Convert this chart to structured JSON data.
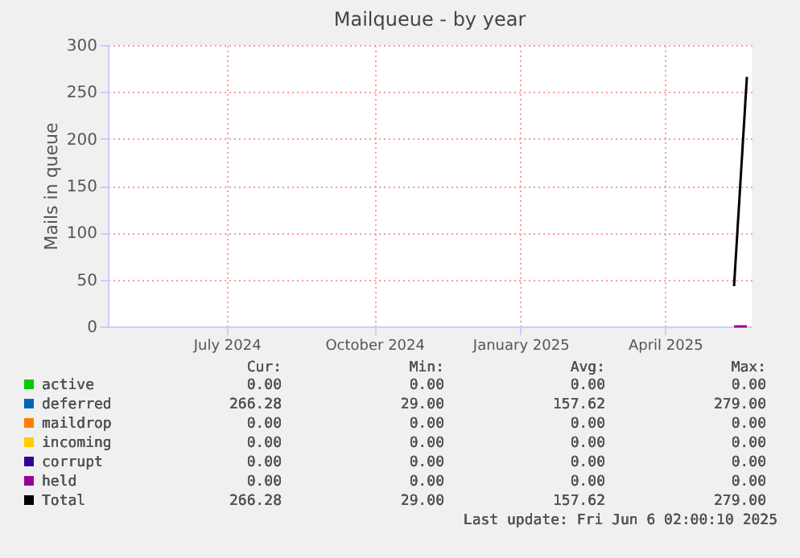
{
  "chart_data": {
    "type": "line",
    "title": "Mailqueue - by year",
    "ylabel": "Mails in queue",
    "xlim": [
      "2024-05-03",
      "2025-06-08"
    ],
    "xticks": [
      {
        "value": "2024-07-16",
        "label": "July 2024"
      },
      {
        "value": "2024-10-16",
        "label": "October 2024"
      },
      {
        "value": "2025-01-15",
        "label": "January 2025"
      },
      {
        "value": "2025-04-15",
        "label": "April 2025"
      }
    ],
    "ylim": [
      0,
      300
    ],
    "yticks": [
      0,
      50,
      100,
      150,
      200,
      250,
      300
    ],
    "grid": true,
    "legend": "bottom",
    "x": [
      "2025-05-28",
      "2025-06-05"
    ],
    "series": [
      {
        "name": "active",
        "color": "#00cc00",
        "values": [
          null,
          null
        ]
      },
      {
        "name": "deferred",
        "color": "#0066b3",
        "values": [
          null,
          null
        ]
      },
      {
        "name": "maildrop",
        "color": "#ff8000",
        "values": [
          null,
          null
        ]
      },
      {
        "name": "incoming",
        "color": "#ffcc00",
        "values": [
          null,
          null
        ]
      },
      {
        "name": "corrupt",
        "color": "#330099",
        "values": [
          null,
          null
        ]
      },
      {
        "name": "held",
        "color": "#990099",
        "values": [
          0,
          0
        ]
      },
      {
        "name": "Total",
        "color": "#000000",
        "values": [
          43,
          266
        ]
      }
    ],
    "annotations": [
      "Cur:",
      "Min:",
      "Avg:",
      "Max:",
      "0.00",
      "0.00",
      "0.00",
      "0.00",
      "266.28",
      "29.00",
      "157.62",
      "279.00",
      "0.00",
      "0.00",
      "0.00",
      "0.00",
      "0.00",
      "0.00",
      "0.00",
      "0.00",
      "0.00",
      "0.00",
      "0.00",
      "0.00",
      "0.00",
      "0.00",
      "0.00",
      "0.00",
      "266.28",
      "29.00",
      "157.62",
      "279.00",
      "Last update: Fri Jun  6 02:00:10 2025"
    ]
  }
}
